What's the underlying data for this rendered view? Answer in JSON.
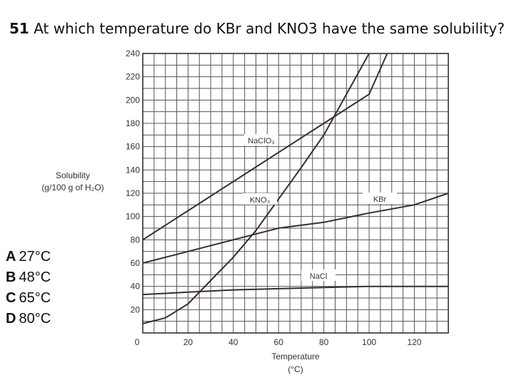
{
  "question": {
    "number": "51",
    "text": "At which temperature do KBr and KNO3 have the same solubility?"
  },
  "answers": [
    {
      "letter": "A",
      "text": "27°C"
    },
    {
      "letter": "B",
      "text": "48°C"
    },
    {
      "letter": "C",
      "text": "65°C"
    },
    {
      "letter": "D",
      "text": "80°C"
    }
  ],
  "chart_data": {
    "type": "line",
    "ylabel_lines": [
      "Solubility",
      "(g/100 g of H₂O)"
    ],
    "xlabel_lines": [
      "Temperature",
      "(°C)"
    ],
    "xlim": [
      0,
      135
    ],
    "ylim": [
      0,
      240
    ],
    "x_ticks": [
      0,
      20,
      40,
      60,
      80,
      100,
      120
    ],
    "y_ticks": [
      20,
      40,
      60,
      80,
      100,
      120,
      140,
      160,
      180,
      200,
      220,
      240
    ],
    "x_origin_label": "0",
    "grid": true,
    "series": [
      {
        "name": "NaClO₃",
        "x": [
          0,
          20,
          40,
          60,
          80,
          100,
          108
        ],
        "y": [
          80,
          105,
          130,
          155,
          180,
          205,
          240
        ]
      },
      {
        "name": "KNO₃",
        "x": [
          0,
          10,
          20,
          30,
          40,
          50,
          60,
          70,
          80,
          90,
          100
        ],
        "y": [
          8,
          13,
          25,
          45,
          65,
          88,
          115,
          142,
          170,
          205,
          240
        ]
      },
      {
        "name": "KBr",
        "x": [
          0,
          20,
          40,
          60,
          80,
          100,
          120,
          135
        ],
        "y": [
          60,
          70,
          80,
          90,
          95,
          103,
          110,
          120
        ]
      },
      {
        "name": "NaCl",
        "x": [
          0,
          20,
          40,
          60,
          80,
          100,
          135
        ],
        "y": [
          33,
          35,
          37,
          38,
          39,
          40,
          40
        ]
      }
    ]
  }
}
